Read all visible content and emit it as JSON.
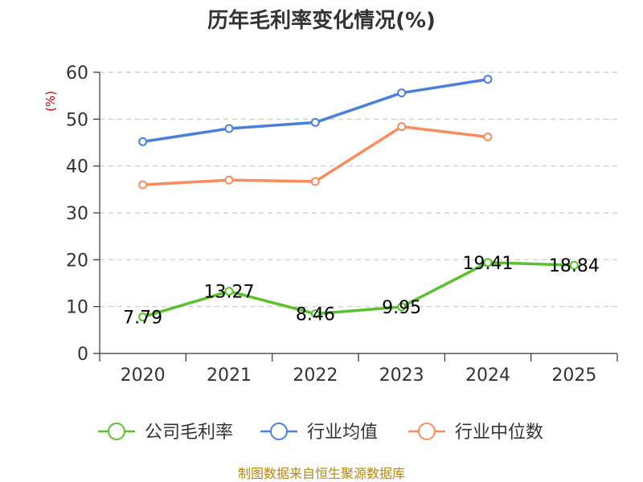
{
  "chart_data": {
    "type": "line",
    "title": "历年毛利率变化情况(%)",
    "xlabel": "",
    "ylabel": "(%)",
    "ylim": [
      0,
      60
    ],
    "yticks": [
      0,
      10,
      20,
      30,
      40,
      50,
      60
    ],
    "categories": [
      "2020",
      "2021",
      "2022",
      "2023",
      "2024",
      "2025"
    ],
    "series": [
      {
        "name": "公司毛利率",
        "color": "#5ac12d",
        "values": [
          7.79,
          13.27,
          8.46,
          9.95,
          19.41,
          18.84
        ],
        "labels": [
          "7.79",
          "13.27",
          "8.46",
          "9.95",
          "19.41",
          "18.84"
        ]
      },
      {
        "name": "行业均值",
        "color": "#4a7fdc",
        "values": [
          45.2,
          48.0,
          49.3,
          55.6,
          58.5,
          null
        ]
      },
      {
        "name": "行业中位数",
        "color": "#f98b5c",
        "values": [
          36.0,
          37.0,
          36.7,
          48.4,
          46.2,
          null
        ]
      }
    ],
    "grid": true,
    "legend_position": "bottom"
  },
  "footer": {
    "source": "制图数据来自恒生聚源数据库"
  }
}
